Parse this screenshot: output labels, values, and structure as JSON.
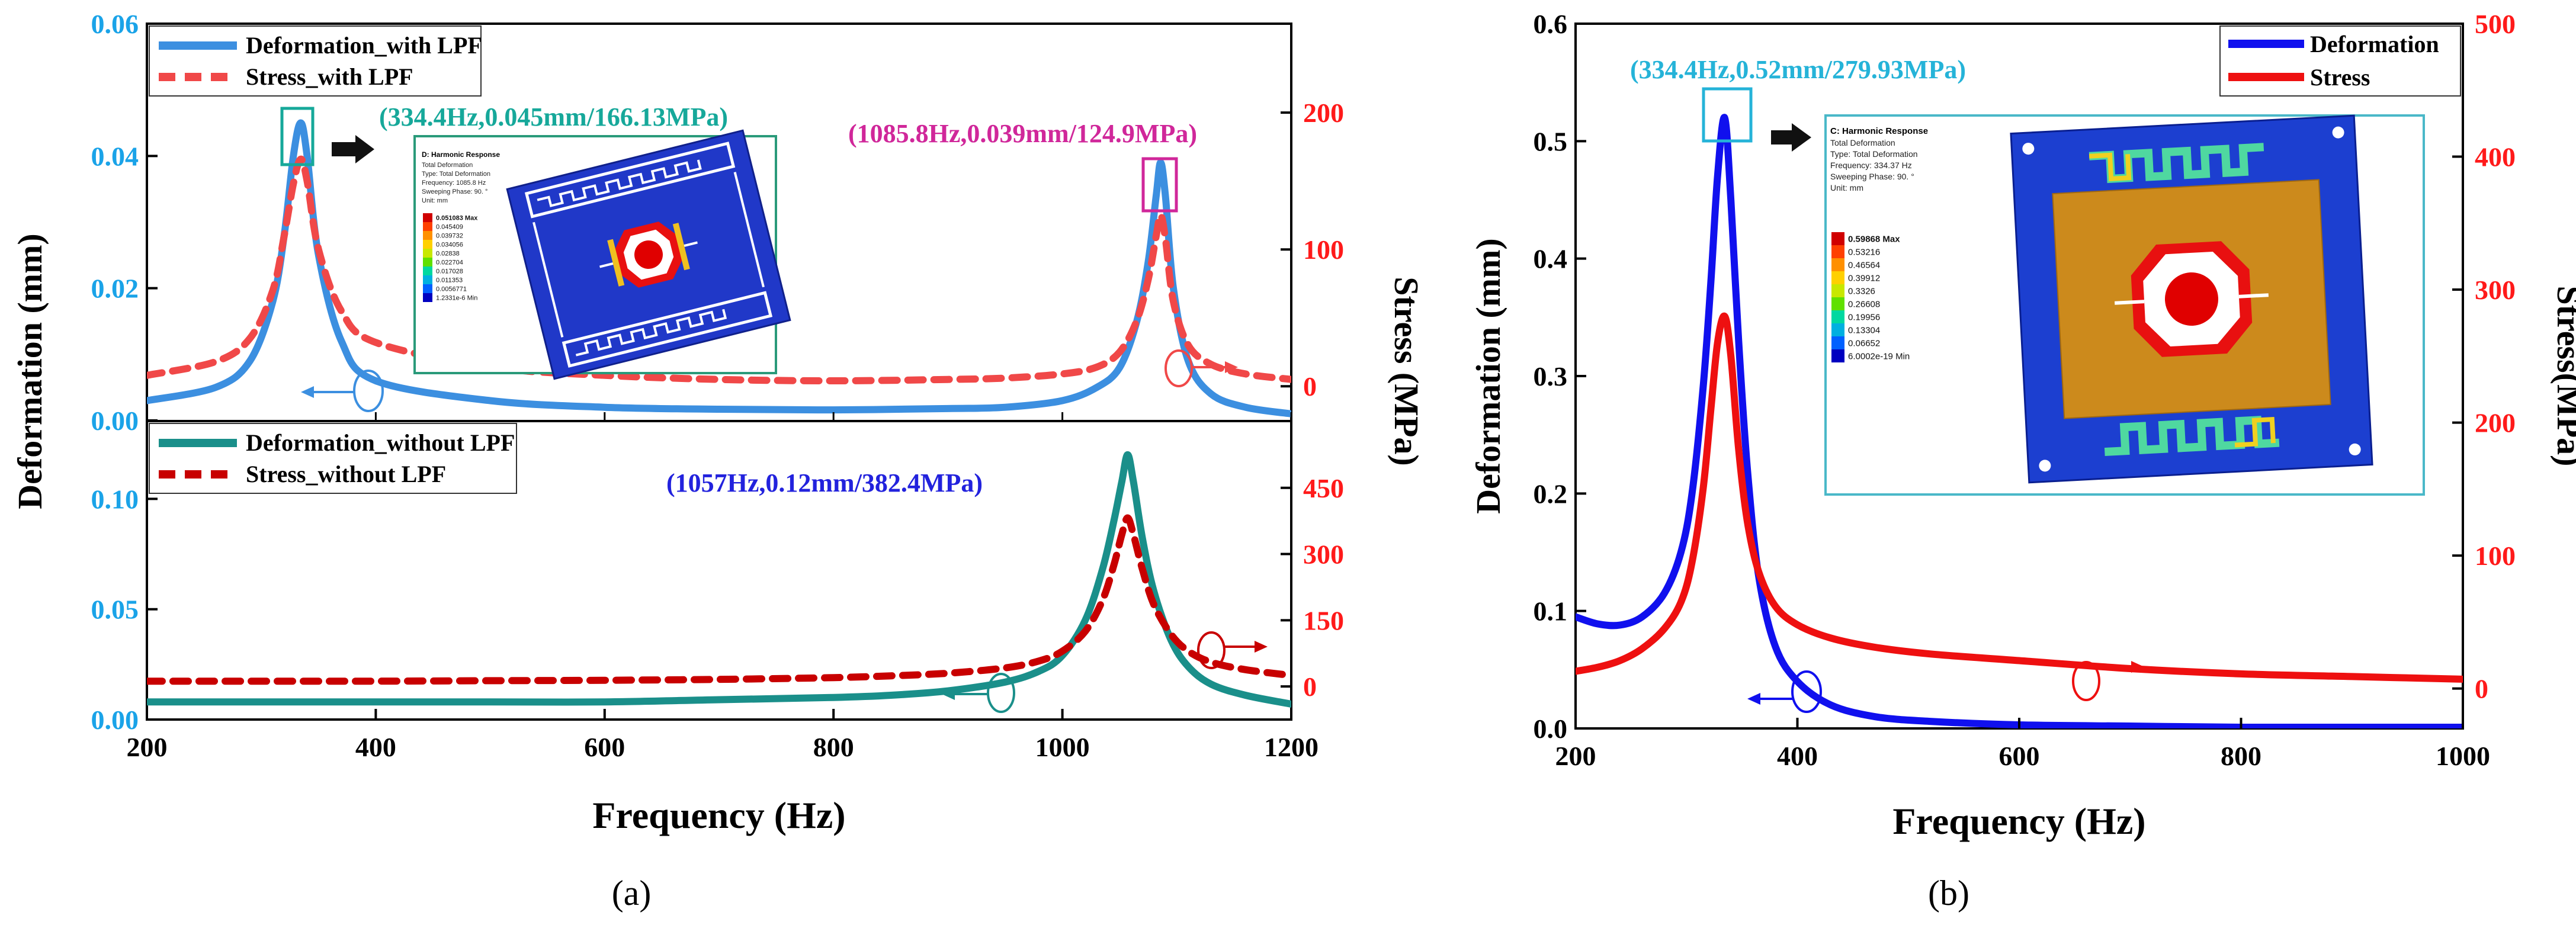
{
  "colors": {
    "blue_axis": "#1aa3e8",
    "red_axis": "#ff1a1a",
    "deform_with": "#3c8fe0",
    "stress_with": "#f04848",
    "deform_without": "#1a8f8a",
    "stress_without": "#c80000",
    "deform_b": "#1010ee",
    "stress_b": "#ee1010",
    "teal_label": "#16a89a",
    "magenta_label": "#d0279a",
    "blue_label": "#2222dd",
    "cyan_label": "#25b3d8",
    "inset_border_a": "#2a9a7a",
    "inset_border_b": "#4ab8c8"
  },
  "chart_data": [
    {
      "id": "a_top",
      "type": "line",
      "panel": "(a)",
      "xlabel": "Frequency (Hz)",
      "ylabel_left": "Deformation (mm)",
      "ylabel_right": "Stress (MPa)",
      "xlim": [
        200,
        1200
      ],
      "ylim_left": [
        0,
        0.06
      ],
      "ylim_right": [
        -25,
        265
      ],
      "xticks": [
        200,
        400,
        600,
        800,
        1000,
        1200
      ],
      "xtick_labels": [
        "200",
        "400",
        "600",
        "800",
        "1000",
        "1200"
      ],
      "yticks_left": [
        0,
        0.02,
        0.04,
        0.06
      ],
      "ytick_labels_left": [
        "0.00",
        "0.02",
        "0.04",
        "0.06"
      ],
      "yticks_right": [
        0,
        100,
        200
      ],
      "ytick_labels_right": [
        "0",
        "100",
        "200"
      ],
      "legend": "top-left",
      "series": [
        {
          "name": "Deformation_with LPF",
          "axis": "left",
          "style": "solid",
          "x": [
            200,
            260,
            290,
            310,
            320,
            328,
            334.4,
            340,
            350,
            370,
            400,
            500,
            600,
            700,
            800,
            900,
            950,
            1000,
            1030,
            1050,
            1065,
            1075,
            1082,
            1085.8,
            1090,
            1097,
            1110,
            1130,
            1160,
            1200
          ],
          "y": [
            0.003,
            0.005,
            0.009,
            0.018,
            0.028,
            0.04,
            0.045,
            0.04,
            0.025,
            0.012,
            0.006,
            0.003,
            0.002,
            0.0017,
            0.0016,
            0.0018,
            0.002,
            0.003,
            0.005,
            0.008,
            0.015,
            0.024,
            0.034,
            0.039,
            0.034,
            0.02,
            0.009,
            0.004,
            0.002,
            0.001
          ]
        },
        {
          "name": "Stress_with LPF",
          "axis": "right",
          "style": "dashed",
          "x": [
            200,
            260,
            290,
            310,
            320,
            328,
            334.4,
            340,
            350,
            370,
            400,
            500,
            600,
            700,
            800,
            900,
            950,
            1000,
            1030,
            1050,
            1065,
            1075,
            1082,
            1085.8,
            1090,
            1097,
            1110,
            1130,
            1160,
            1200
          ],
          "y": [
            8,
            18,
            35,
            70,
            110,
            148,
            166,
            150,
            100,
            55,
            32,
            14,
            8,
            5,
            4,
            5,
            6,
            9,
            14,
            25,
            48,
            78,
            110,
            125,
            108,
            62,
            30,
            16,
            9,
            5
          ]
        }
      ],
      "annotations": [
        {
          "text": "(334.4Hz,0.045mm/166.13MPa)",
          "color": "teal_label"
        },
        {
          "text": "(1085.8Hz,0.039mm/124.9MPa)",
          "color": "magenta_label"
        }
      ]
    },
    {
      "id": "a_bottom",
      "type": "line",
      "panel": "(a)",
      "xlim": [
        200,
        1200
      ],
      "ylim_left": [
        0,
        0.135
      ],
      "ylim_right": [
        -75,
        600
      ],
      "yticks_left": [
        0,
        0.05,
        0.1
      ],
      "ytick_labels_left": [
        "0.00",
        "0.05",
        "0.10"
      ],
      "yticks_right": [
        0,
        150,
        300,
        450
      ],
      "ytick_labels_right": [
        "0",
        "150",
        "300",
        "450"
      ],
      "legend": "top-left",
      "series": [
        {
          "name": "Deformation_without LPF",
          "axis": "left",
          "style": "solid",
          "x": [
            200,
            300,
            400,
            500,
            600,
            700,
            800,
            850,
            900,
            950,
            980,
            1000,
            1020,
            1035,
            1045,
            1052,
            1057,
            1062,
            1070,
            1080,
            1095,
            1110,
            1130,
            1160,
            1200
          ],
          "y": [
            0.008,
            0.008,
            0.008,
            0.008,
            0.008,
            0.009,
            0.01,
            0.011,
            0.013,
            0.017,
            0.022,
            0.029,
            0.045,
            0.068,
            0.09,
            0.108,
            0.12,
            0.108,
            0.082,
            0.058,
            0.036,
            0.024,
            0.016,
            0.011,
            0.007
          ]
        },
        {
          "name": "Stress_without LPF",
          "axis": "right",
          "style": "dashed",
          "x": [
            200,
            300,
            400,
            500,
            600,
            700,
            800,
            850,
            900,
            950,
            980,
            1000,
            1020,
            1035,
            1045,
            1052,
            1057,
            1062,
            1070,
            1080,
            1095,
            1110,
            1130,
            1160,
            1200
          ],
          "y": [
            12,
            12,
            12,
            13,
            14,
            16,
            20,
            24,
            30,
            42,
            58,
            80,
            125,
            195,
            275,
            345,
            382,
            345,
            265,
            185,
            118,
            80,
            55,
            38,
            25
          ]
        }
      ],
      "annotations": [
        {
          "text": "(1057Hz,0.12mm/382.4MPa)",
          "color": "blue_label"
        }
      ]
    },
    {
      "id": "b",
      "type": "line",
      "panel": "(b)",
      "xlabel": "Frequency (Hz)",
      "ylabel_left": "Deformation (mm)",
      "ylabel_right": "Stress(MPa)",
      "xlim": [
        200,
        1000
      ],
      "ylim_left": [
        0,
        0.6
      ],
      "ylim_right": [
        -30,
        500
      ],
      "xticks": [
        200,
        400,
        600,
        800,
        1000
      ],
      "xtick_labels": [
        "200",
        "400",
        "600",
        "800",
        "1000"
      ],
      "yticks_left": [
        0,
        0.1,
        0.2,
        0.3,
        0.4,
        0.5,
        0.6
      ],
      "ytick_labels_left": [
        "0.0",
        "0.1",
        "0.2",
        "0.3",
        "0.4",
        "0.5",
        "0.6"
      ],
      "yticks_right": [
        0,
        100,
        200,
        300,
        400,
        500
      ],
      "ytick_labels_right": [
        "0",
        "100",
        "200",
        "300",
        "400",
        "500"
      ],
      "legend": "top-right",
      "series": [
        {
          "name": "Deformation",
          "axis": "left",
          "style": "solid",
          "x": [
            200,
            220,
            240,
            260,
            280,
            295,
            305,
            315,
            322,
            328,
            334.4,
            340,
            347,
            355,
            365,
            380,
            400,
            430,
            470,
            520,
            600,
            700,
            800,
            900,
            1000
          ],
          "y": [
            0.095,
            0.089,
            0.088,
            0.095,
            0.115,
            0.15,
            0.2,
            0.29,
            0.38,
            0.47,
            0.52,
            0.45,
            0.33,
            0.22,
            0.13,
            0.07,
            0.04,
            0.02,
            0.01,
            0.006,
            0.003,
            0.002,
            0.001,
            0.001,
            0.001
          ]
        },
        {
          "name": "Stress",
          "axis": "right",
          "style": "solid",
          "x": [
            200,
            220,
            240,
            260,
            280,
            295,
            305,
            315,
            322,
            328,
            334.4,
            340,
            347,
            355,
            365,
            380,
            400,
            430,
            470,
            520,
            600,
            700,
            800,
            900,
            1000
          ],
          "y": [
            13,
            16,
            21,
            30,
            45,
            65,
            95,
            150,
            210,
            260,
            280,
            250,
            180,
            125,
            88,
            62,
            48,
            38,
            31,
            26,
            21,
            15,
            11,
            9,
            7
          ]
        }
      ],
      "annotations": [
        {
          "text": "(334.4Hz,0.52mm/279.93MPa)",
          "color": "cyan_label"
        }
      ]
    }
  ],
  "labels": {
    "panel_a": "(a)",
    "panel_b": "(b)",
    "xlabel": "Frequency (Hz)",
    "ylabel_a_left": "Deformation (mm)",
    "ylabel_a_right": "Stress (MPa)",
    "ylabel_b_left": "Deformation (mm)",
    "ylabel_b_right": "Stress(MPa)"
  },
  "inset_a": {
    "title": "D: Harmonic Response",
    "lines": [
      "Total Deformation",
      "Type: Total Deformation",
      "Frequency: 1085.8 Hz",
      "Sweeping Phase: 90. °",
      "Unit: mm"
    ],
    "legend": [
      "0.051083 Max",
      "0.045409",
      "0.039732",
      "0.034056",
      "0.02838",
      "0.022704",
      "0.017028",
      "0.011353",
      "0.0056771",
      "1.2331e-6 Min"
    ]
  },
  "inset_b": {
    "title": "C: Harmonic Response",
    "lines": [
      "Total Deformation",
      "Type: Total Deformation",
      "Frequency: 334.37 Hz",
      "Sweeping Phase: 90. °",
      "Unit: mm"
    ],
    "legend": [
      "0.59868 Max",
      "0.53216",
      "0.46564",
      "0.39912",
      "0.3326",
      "0.26608",
      "0.19956",
      "0.13304",
      "0.06652",
      "6.0002e-19 Min"
    ]
  },
  "contour_colors": [
    "#d00000",
    "#ff4000",
    "#ff9000",
    "#ffd000",
    "#c8e800",
    "#60e000",
    "#00d8a0",
    "#00b0e0",
    "#0060ff",
    "#0000c0"
  ]
}
